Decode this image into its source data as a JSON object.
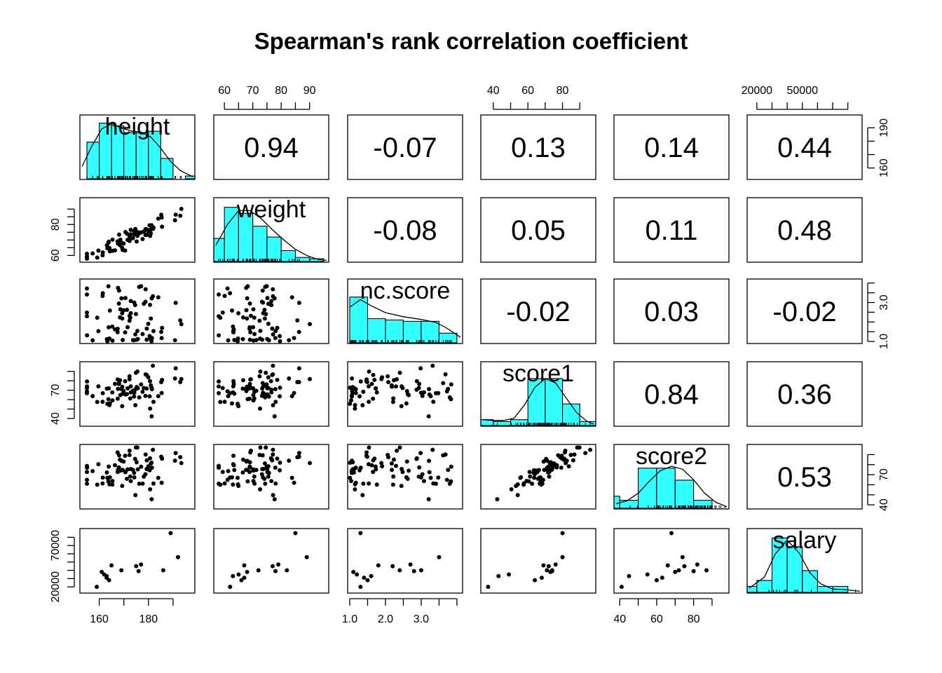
{
  "chart_data": {
    "type": "pairs",
    "title": "Spearman's rank correlation coefficient",
    "variables": [
      "height",
      "weight",
      "nc.score",
      "score1",
      "score2",
      "salary"
    ],
    "ranges": [
      [
        153,
        198
      ],
      [
        57,
        96
      ],
      [
        1,
        4.1
      ],
      [
        34,
        98
      ],
      [
        38,
        98
      ],
      [
        15000,
        88000
      ]
    ],
    "ticks": {
      "height": [
        160,
        170,
        180,
        190
      ],
      "weight": [
        60,
        65,
        70,
        75,
        80,
        85,
        90
      ],
      "nc.score": [
        1.0,
        1.5,
        2.0,
        2.5,
        3.0,
        3.5,
        4.0
      ],
      "score1": [
        40,
        50,
        60,
        70,
        80,
        90
      ],
      "score2": [
        40,
        50,
        60,
        70,
        80,
        90
      ],
      "salary": [
        20000,
        30000,
        40000,
        50000,
        60000,
        70000,
        80000
      ]
    },
    "tick_labels": {
      "top_weight": [
        "60",
        "70",
        "80",
        "90"
      ],
      "top_score1": [
        "40",
        "60",
        "80"
      ],
      "top_salary": [
        "20000",
        "50000"
      ],
      "bottom_height": [
        "160",
        "180"
      ],
      "bottom_nc": [
        "1.0",
        "2.0",
        "3.0"
      ],
      "bottom_score2": [
        "40",
        "60",
        "80"
      ],
      "left_weight": [
        "60",
        "80"
      ],
      "left_score1": [
        "40",
        "70"
      ],
      "left_salary": [
        "20000",
        "70000"
      ],
      "right_height": [
        "160",
        "190"
      ],
      "right_nc": [
        "1.0",
        "3.0"
      ],
      "right_score2": [
        "40",
        "70"
      ]
    },
    "correlations": [
      {
        "row": 0,
        "col": 1,
        "value": "0.94"
      },
      {
        "row": 0,
        "col": 2,
        "value": "-0.07"
      },
      {
        "row": 0,
        "col": 3,
        "value": "0.13"
      },
      {
        "row": 0,
        "col": 4,
        "value": "0.14"
      },
      {
        "row": 0,
        "col": 5,
        "value": "0.44"
      },
      {
        "row": 1,
        "col": 2,
        "value": "-0.08"
      },
      {
        "row": 1,
        "col": 3,
        "value": "0.05"
      },
      {
        "row": 1,
        "col": 4,
        "value": "0.11"
      },
      {
        "row": 1,
        "col": 5,
        "value": "0.48"
      },
      {
        "row": 2,
        "col": 3,
        "value": "-0.02"
      },
      {
        "row": 2,
        "col": 4,
        "value": "0.03"
      },
      {
        "row": 2,
        "col": 5,
        "value": "-0.02"
      },
      {
        "row": 3,
        "col": 4,
        "value": "0.84"
      },
      {
        "row": 3,
        "col": 5,
        "value": "0.36"
      },
      {
        "row": 4,
        "col": 5,
        "value": "0.53"
      }
    ],
    "histograms": [
      {
        "var": "height",
        "breaks": [
          155,
          160,
          165,
          170,
          175,
          180,
          185,
          190,
          195,
          200
        ],
        "density": [
          0.036,
          0.0547,
          0.052,
          0.0453,
          0.0453,
          0.0467,
          0.02,
          0.0,
          0.0027
        ],
        "ymax": 0.062
      },
      {
        "var": "weight",
        "breaks": [
          55,
          60,
          65,
          70,
          75,
          80,
          85,
          90,
          95,
          100
        ],
        "density": [
          0.0227,
          0.0533,
          0.0473,
          0.0347,
          0.024,
          0.0107,
          0.004,
          0.0027,
          0.0
        ],
        "ymax": 0.062
      },
      {
        "var": "nc.score",
        "breaks": [
          1.0,
          1.5,
          2.0,
          2.5,
          3.0,
          3.5,
          4.0
        ],
        "density": [
          0.667,
          0.353,
          0.333,
          0.313,
          0.313,
          0.14
        ],
        "ymax": 0.92
      },
      {
        "var": "score1",
        "breaks": [
          30,
          40,
          50,
          60,
          70,
          80,
          90,
          100
        ],
        "density": [
          0.004,
          0.0027,
          0.004,
          0.032,
          0.032,
          0.0147,
          0.0027
        ],
        "ymax": 0.043
      },
      {
        "var": "score2",
        "breaks": [
          30,
          40,
          50,
          60,
          70,
          80,
          90,
          100
        ],
        "density": [
          0.008,
          0.0053,
          0.0267,
          0.0267,
          0.0187,
          0.0053,
          0.0
        ],
        "ymax": 0.042
      },
      {
        "var": "salary",
        "breaks": [
          10000,
          20000,
          30000,
          40000,
          50000,
          60000,
          70000,
          80000,
          90000
        ],
        "density": [
          5.5e-06,
          1.1e-05,
          5e-05,
          4.2e-05,
          2e-05,
          5.5e-06,
          5.5e-06,
          0.0
        ],
        "ymax": 5.8e-05
      }
    ],
    "density_curves": [
      {
        "var": "height",
        "points": [
          [
            153,
            0.012
          ],
          [
            157,
            0.032
          ],
          [
            161,
            0.049
          ],
          [
            165,
            0.054
          ],
          [
            169,
            0.05
          ],
          [
            173,
            0.047
          ],
          [
            177,
            0.046
          ],
          [
            181,
            0.041
          ],
          [
            185,
            0.03
          ],
          [
            189,
            0.017
          ],
          [
            193,
            0.008
          ],
          [
            198,
            0.002
          ]
        ]
      },
      {
        "var": "weight",
        "points": [
          [
            57,
            0.016
          ],
          [
            61,
            0.036
          ],
          [
            65,
            0.05
          ],
          [
            69,
            0.05
          ],
          [
            73,
            0.042
          ],
          [
            77,
            0.031
          ],
          [
            81,
            0.021
          ],
          [
            85,
            0.012
          ],
          [
            89,
            0.006
          ],
          [
            93,
            0.002
          ],
          [
            96,
            0.001
          ]
        ]
      },
      {
        "var": "nc.score",
        "points": [
          [
            1.0,
            0.52
          ],
          [
            1.3,
            0.63
          ],
          [
            1.6,
            0.54
          ],
          [
            2.0,
            0.44
          ],
          [
            2.5,
            0.38
          ],
          [
            3.0,
            0.34
          ],
          [
            3.4,
            0.3
          ],
          [
            3.7,
            0.22
          ],
          [
            4.1,
            0.08
          ]
        ]
      },
      {
        "var": "score1",
        "points": [
          [
            34,
            0.004
          ],
          [
            40,
            0.0035
          ],
          [
            46,
            0.0035
          ],
          [
            52,
            0.005
          ],
          [
            58,
            0.014
          ],
          [
            64,
            0.026
          ],
          [
            70,
            0.032
          ],
          [
            76,
            0.029
          ],
          [
            82,
            0.019
          ],
          [
            88,
            0.009
          ],
          [
            94,
            0.003
          ],
          [
            98,
            0.001
          ]
        ]
      },
      {
        "var": "score2",
        "points": [
          [
            38,
            0.003
          ],
          [
            44,
            0.005
          ],
          [
            50,
            0.01
          ],
          [
            56,
            0.018
          ],
          [
            62,
            0.025
          ],
          [
            68,
            0.028
          ],
          [
            74,
            0.026
          ],
          [
            80,
            0.019
          ],
          [
            86,
            0.01
          ],
          [
            92,
            0.004
          ],
          [
            98,
            0.001
          ]
        ]
      },
      {
        "var": "salary",
        "points": [
          [
            15000,
            4e-06
          ],
          [
            25000,
            1.4e-05
          ],
          [
            32000,
            3.5e-05
          ],
          [
            40000,
            4.8e-05
          ],
          [
            48000,
            3.6e-05
          ],
          [
            55000,
            1.8e-05
          ],
          [
            62000,
            8e-06
          ],
          [
            70000,
            3e-06
          ],
          [
            78000,
            2.5e-06
          ],
          [
            88000,
            1e-06
          ]
        ]
      }
    ],
    "salary_subset": {
      "height": [
        159,
        163,
        162,
        164,
        163,
        165,
        161,
        169,
        176,
        177,
        175,
        186,
        189,
        192
      ],
      "weight": [
        62,
        63,
        65,
        66,
        67,
        67,
        68,
        72,
        78,
        79,
        77,
        82,
        85,
        89
      ],
      "nc.score": [
        1.3,
        1.6,
        1.2,
        1.5,
        1.4,
        1.8,
        1.1,
        2.4,
        2.8,
        2.7,
        2.2,
        3.0,
        1.3,
        3.5
      ],
      "score1": [
        37,
        43,
        49,
        64,
        68,
        69,
        73,
        71,
        74,
        76,
        72,
        74,
        80,
        80
      ],
      "score2": [
        41,
        45,
        55,
        60,
        63,
        66,
        70,
        72,
        80,
        82,
        75,
        87,
        68,
        74
      ],
      "salary": [
        20000,
        33000,
        35000,
        28000,
        31000,
        46000,
        38000,
        40000,
        39000,
        47000,
        45000,
        40000,
        85000,
        56000
      ]
    }
  }
}
